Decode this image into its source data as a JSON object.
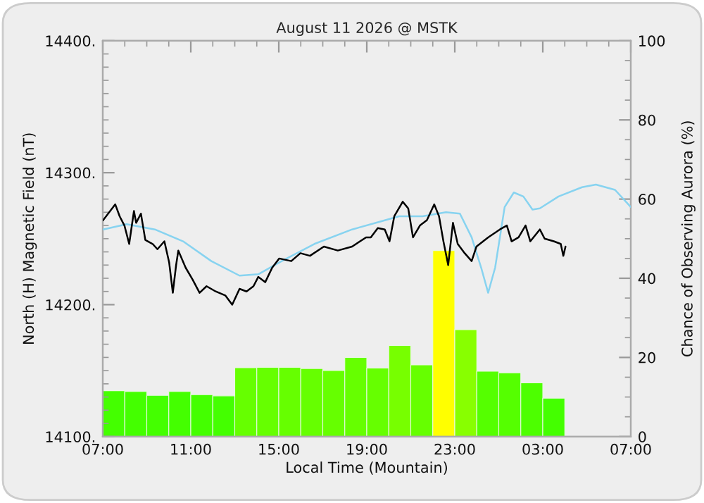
{
  "chart_data": {
    "type": "line",
    "title": "August 11 2026 @ MSTK",
    "xlabel": "Local Time (Mountain)",
    "ylabel": "North (H) Magnetic Field (nT)",
    "y2label": "Chance of Observing Aurora (%)",
    "xlim": [
      "2026-08-11T07:00",
      "2026-08-12T07:00"
    ],
    "xticks": [
      {
        "value": "2026-08-11T07:00",
        "label": "07:00"
      },
      {
        "value": "2026-08-11T11:00",
        "label": "11:00"
      },
      {
        "value": "2026-08-11T15:00",
        "label": "15:00"
      },
      {
        "value": "2026-08-11T19:00",
        "label": "19:00"
      },
      {
        "value": "2026-08-11T23:00",
        "label": "23:00"
      },
      {
        "value": "2026-08-12T03:00",
        "label": "03:00"
      },
      {
        "value": "2026-08-12T07:00",
        "label": "07:00"
      }
    ],
    "ylim": [
      14100,
      14400
    ],
    "yticks": [
      {
        "value": 14100,
        "label": "14100."
      },
      {
        "value": 14200,
        "label": "14200."
      },
      {
        "value": 14300,
        "label": "14300."
      },
      {
        "value": 14400,
        "label": "14400."
      }
    ],
    "y2lim": [
      0,
      100
    ],
    "y2ticks": [
      0,
      20,
      40,
      60,
      80,
      100
    ],
    "grid": false,
    "legend": false,
    "series": [
      {
        "type": "bar",
        "axis": "y2",
        "x": [
          "2026-08-11T07:30",
          "2026-08-11T08:30",
          "2026-08-11T09:30",
          "2026-08-11T10:30",
          "2026-08-11T11:30",
          "2026-08-11T12:30",
          "2026-08-11T13:30",
          "2026-08-11T14:30",
          "2026-08-11T15:30",
          "2026-08-11T16:30",
          "2026-08-11T17:30",
          "2026-08-11T18:30",
          "2026-08-11T19:30",
          "2026-08-11T20:30",
          "2026-08-11T21:30",
          "2026-08-11T22:30",
          "2026-08-11T23:30",
          "2026-08-12T00:30",
          "2026-08-12T01:30",
          "2026-08-12T02:30",
          "2026-08-12T03:30"
        ],
        "values": [
          11.6,
          11.4,
          10.4,
          11.4,
          10.6,
          10.3,
          17.4,
          17.5,
          17.5,
          17.2,
          16.7,
          20.0,
          17.3,
          23.0,
          18.1,
          47.0,
          27.0,
          16.5,
          16.1,
          13.6,
          9.7
        ],
        "colors": [
          "#44ff00",
          "#44ff00",
          "#44ff00",
          "#44ff00",
          "#44ff00",
          "#44ff00",
          "#66ff00",
          "#66ff00",
          "#66ff00",
          "#66ff00",
          "#66ff00",
          "#66ff00",
          "#66ff00",
          "#77ff00",
          "#66ff00",
          "#ffff00",
          "#88ff00",
          "#55ff00",
          "#55ff00",
          "#4dff00",
          "#44ff00"
        ]
      },
      {
        "color": "#87d3f0",
        "x": [
          "2026-08-11T07:01",
          "2026-08-11T08:05",
          "2026-08-11T09:22",
          "2026-08-11T10:39",
          "2026-08-11T11:56",
          "2026-08-11T13:13",
          "2026-08-11T14:04",
          "2026-08-11T15:08",
          "2026-08-11T16:37",
          "2026-08-11T18:20",
          "2026-08-11T19:37",
          "2026-08-11T20:28",
          "2026-08-11T21:32",
          "2026-08-11T22:36",
          "2026-08-11T23:14",
          "2026-08-11T23:46",
          "2026-08-12T00:12",
          "2026-08-12T00:31",
          "2026-08-12T00:50",
          "2026-08-12T01:16",
          "2026-08-12T01:41",
          "2026-08-12T02:07",
          "2026-08-12T02:32",
          "2026-08-12T02:52",
          "2026-08-12T03:43",
          "2026-08-12T04:47",
          "2026-08-12T05:25",
          "2026-08-12T06:17",
          "2026-08-12T07:00"
        ],
        "values": [
          14257,
          14261,
          14257,
          14248,
          14233,
          14222,
          14223,
          14233,
          14246,
          14257,
          14263,
          14267,
          14267,
          14270,
          14269,
          14251,
          14228,
          14209,
          14228,
          14274,
          14285,
          14282,
          14272,
          14273,
          14282,
          14289,
          14291,
          14287,
          14274
        ]
      },
      {
        "color": "#000000",
        "x": [
          "2026-08-11T07:01",
          "2026-08-11T07:34",
          "2026-08-11T07:46",
          "2026-08-11T07:59",
          "2026-08-11T08:12",
          "2026-08-11T08:25",
          "2026-08-11T08:31",
          "2026-08-11T08:44",
          "2026-08-11T08:56",
          "2026-08-11T09:16",
          "2026-08-11T09:29",
          "2026-08-11T09:48",
          "2026-08-11T10:01",
          "2026-08-11T10:11",
          "2026-08-11T10:20",
          "2026-08-11T10:26",
          "2026-08-11T10:46",
          "2026-08-11T11:05",
          "2026-08-11T11:24",
          "2026-08-11T11:43",
          "2026-08-11T12:08",
          "2026-08-11T12:34",
          "2026-08-11T12:53",
          "2026-08-11T13:13",
          "2026-08-11T13:32",
          "2026-08-11T13:51",
          "2026-08-11T14:04",
          "2026-08-11T14:23",
          "2026-08-11T14:42",
          "2026-08-11T15:01",
          "2026-08-11T15:34",
          "2026-08-11T15:59",
          "2026-08-11T16:25",
          "2026-08-11T17:03",
          "2026-08-11T17:41",
          "2026-08-11T18:20",
          "2026-08-11T18:58",
          "2026-08-11T19:11",
          "2026-08-11T19:30",
          "2026-08-11T19:49",
          "2026-08-11T20:02",
          "2026-08-11T20:15",
          "2026-08-11T20:38",
          "2026-08-11T20:53",
          "2026-08-11T21:06",
          "2026-08-11T21:25",
          "2026-08-11T21:44",
          "2026-08-11T22:04",
          "2026-08-11T22:17",
          "2026-08-11T22:29",
          "2026-08-11T22:42",
          "2026-08-11T22:55",
          "2026-08-11T23:08",
          "2026-08-11T23:27",
          "2026-08-11T23:46",
          "2026-08-11T23:59",
          "2026-08-12T00:31",
          "2026-08-12T01:03",
          "2026-08-12T01:22",
          "2026-08-12T01:35",
          "2026-08-12T01:54",
          "2026-08-12T02:13",
          "2026-08-12T02:26",
          "2026-08-12T02:52",
          "2026-08-12T03:05",
          "2026-08-12T03:30",
          "2026-08-12T03:49",
          "2026-08-12T03:56",
          "2026-08-12T04:02"
        ],
        "values": [
          14264,
          14276,
          14267,
          14260,
          14246,
          14271,
          14262,
          14269,
          14249,
          14246,
          14242,
          14248,
          14232,
          14209,
          14230,
          14241,
          14228,
          14219,
          14209,
          14214,
          14210,
          14207,
          14200,
          14212,
          14210,
          14214,
          14221,
          14217,
          14228,
          14235,
          14233,
          14239,
          14237,
          14244,
          14241,
          14244,
          14251,
          14251,
          14258,
          14257,
          14248,
          14267,
          14278,
          14273,
          14251,
          14260,
          14264,
          14276,
          14267,
          14248,
          14230,
          14262,
          14246,
          14239,
          14233,
          14244,
          14251,
          14257,
          14260,
          14248,
          14251,
          14260,
          14248,
          14257,
          14250,
          14248,
          14246,
          14237,
          14244
        ]
      }
    ]
  }
}
